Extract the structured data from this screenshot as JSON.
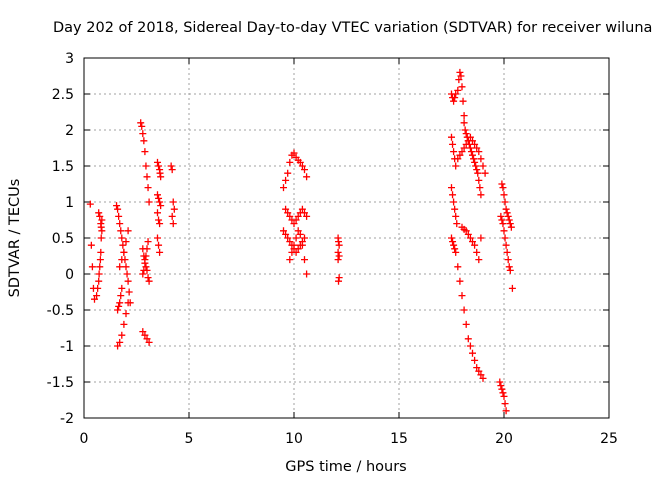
{
  "chart_data": {
    "type": "scatter",
    "title": "Day 202 of 2018, Sidereal Day-to-day VTEC variation (SDTVAR) for receiver wiluna",
    "xlabel": "GPS time / hours",
    "ylabel": "SDTVAR / TECUs",
    "xlim": [
      0,
      25
    ],
    "ylim": [
      -2,
      3
    ],
    "xticks": [
      0,
      5,
      10,
      15,
      20,
      25
    ],
    "yticks": [
      -2,
      -1.5,
      -1,
      -0.5,
      0,
      0.5,
      1,
      1.5,
      2,
      2.5,
      3
    ],
    "xtick_labels": [
      "0",
      "5",
      "10",
      "15",
      "20",
      "25"
    ],
    "ytick_labels": [
      "-2",
      "-1.5",
      "-1",
      "-0.5",
      "0",
      "0.5",
      "1",
      "1.5",
      "2",
      "2.5",
      "3"
    ],
    "grid": true,
    "marker": "+",
    "marker_color": "#ff0000",
    "series": [
      {
        "name": "SDTVAR",
        "x": [
          0.3,
          0.35,
          0.4,
          0.45,
          0.5,
          0.6,
          0.65,
          0.7,
          0.72,
          0.75,
          0.78,
          0.8,
          0.82,
          0.85,
          0.7,
          0.75,
          0.8,
          0.82,
          0.85,
          1.55,
          1.6,
          1.65,
          1.7,
          1.75,
          1.8,
          1.85,
          1.9,
          1.95,
          2.0,
          2.05,
          2.1,
          2.15,
          2.2,
          1.6,
          1.7,
          1.8,
          1.9,
          2.0,
          2.1,
          1.7,
          1.8,
          1.9,
          2.0,
          2.1,
          1.6,
          1.65,
          1.7,
          1.75,
          1.8,
          2.7,
          2.75,
          2.8,
          2.85,
          2.9,
          2.95,
          3.0,
          3.05,
          3.1,
          2.8,
          2.85,
          2.9,
          2.95,
          3.0,
          3.05,
          3.1,
          2.8,
          2.9,
          3.0,
          3.1,
          2.8,
          2.85,
          2.9,
          2.95,
          3.0,
          3.05,
          3.5,
          3.55,
          3.6,
          3.62,
          3.65,
          3.5,
          3.55,
          3.6,
          3.65,
          3.5,
          3.55,
          3.6,
          3.5,
          3.55,
          3.6,
          4.15,
          4.2,
          4.25,
          4.3,
          4.2,
          4.25,
          9.5,
          9.6,
          9.7,
          9.8,
          9.9,
          10.0,
          10.1,
          10.2,
          10.3,
          10.4,
          10.5,
          10.6,
          9.6,
          9.7,
          9.8,
          9.9,
          10.0,
          10.1,
          10.2,
          10.3,
          10.4,
          10.5,
          10.6,
          9.5,
          9.6,
          9.7,
          9.8,
          9.9,
          10.0,
          10.1,
          10.2,
          10.3,
          10.4,
          10.5,
          9.8,
          9.9,
          10.0,
          10.1,
          10.2,
          10.3,
          10.4,
          10.5,
          10.6,
          12.1,
          12.12,
          12.15,
          12.1,
          12.15,
          12.1,
          12.15,
          12.12,
          17.5,
          17.55,
          17.6,
          17.65,
          17.7,
          17.8,
          17.85,
          17.9,
          17.95,
          18.0,
          18.05,
          18.1,
          17.5,
          17.55,
          17.6,
          17.65,
          17.7,
          17.5,
          17.55,
          17.6,
          17.65,
          17.7,
          17.75,
          17.5,
          17.55,
          17.6,
          17.65,
          17.7,
          17.8,
          17.9,
          18.0,
          18.1,
          18.2,
          18.3,
          18.4,
          18.5,
          18.6,
          18.7,
          18.8,
          18.9,
          19.0,
          17.8,
          17.9,
          18.0,
          18.1,
          18.2,
          18.3,
          18.4,
          18.5,
          18.6,
          18.7,
          18.8,
          18.9,
          19.0,
          19.1,
          18.0,
          18.1,
          18.2,
          18.3,
          18.4,
          18.5,
          18.6,
          18.7,
          18.8,
          18.9,
          18.1,
          18.15,
          18.2,
          18.25,
          18.3,
          18.35,
          18.4,
          18.45,
          18.5,
          18.55,
          18.6,
          18.65,
          18.7,
          18.75,
          18.8,
          18.85,
          18.9,
          19.9,
          19.95,
          20.0,
          20.05,
          20.1,
          20.15,
          20.2,
          20.25,
          20.3,
          20.35,
          19.85,
          19.9,
          19.95,
          20.0,
          20.05,
          20.1,
          20.15,
          20.2,
          20.25,
          20.3,
          20.4,
          19.8,
          19.85,
          19.9,
          19.95,
          20.0,
          20.05,
          20.1
        ],
        "y": [
          0.97,
          0.4,
          0.1,
          -0.2,
          -0.35,
          -0.3,
          -0.2,
          -0.1,
          0.0,
          0.1,
          0.2,
          0.3,
          0.5,
          0.75,
          0.85,
          0.8,
          0.7,
          0.65,
          0.6,
          0.95,
          0.9,
          0.8,
          0.7,
          0.6,
          0.5,
          0.4,
          0.3,
          0.2,
          0.1,
          0.0,
          -0.1,
          -0.25,
          -0.4,
          -1.0,
          -0.95,
          -0.85,
          -0.7,
          -0.55,
          -0.4,
          0.1,
          0.2,
          0.3,
          0.45,
          0.6,
          -0.5,
          -0.45,
          -0.4,
          -0.3,
          -0.2,
          2.1,
          2.05,
          1.95,
          1.85,
          1.7,
          1.5,
          1.35,
          1.2,
          1.0,
          0.35,
          0.25,
          0.2,
          0.1,
          0.05,
          -0.05,
          -0.1,
          -0.8,
          -0.85,
          -0.9,
          -0.95,
          0.0,
          0.05,
          0.15,
          0.25,
          0.35,
          0.45,
          1.55,
          1.5,
          1.45,
          1.4,
          1.35,
          1.1,
          1.05,
          1.0,
          0.95,
          0.85,
          0.75,
          0.7,
          0.5,
          0.4,
          0.3,
          1.5,
          1.45,
          1.0,
          0.9,
          0.8,
          0.7,
          1.2,
          1.3,
          1.4,
          1.55,
          1.65,
          1.68,
          1.62,
          1.58,
          1.55,
          1.5,
          1.45,
          1.35,
          0.9,
          0.85,
          0.8,
          0.75,
          0.7,
          0.75,
          0.8,
          0.85,
          0.9,
          0.85,
          0.8,
          0.6,
          0.55,
          0.5,
          0.45,
          0.4,
          0.35,
          0.3,
          0.35,
          0.4,
          0.45,
          0.5,
          0.2,
          0.3,
          0.4,
          0.5,
          0.6,
          0.55,
          0.4,
          0.2,
          0.0,
          0.5,
          0.45,
          0.4,
          0.3,
          0.25,
          0.2,
          -0.05,
          -0.1,
          2.5,
          2.45,
          2.4,
          2.45,
          2.5,
          2.55,
          2.7,
          2.8,
          2.75,
          2.6,
          2.4,
          2.2,
          1.9,
          1.8,
          1.7,
          1.6,
          1.5,
          1.2,
          1.1,
          1.0,
          0.9,
          0.8,
          0.7,
          0.5,
          0.45,
          0.4,
          0.35,
          0.3,
          0.1,
          -0.1,
          -0.3,
          -0.5,
          -0.7,
          -0.9,
          -1.0,
          -1.1,
          -1.2,
          -1.3,
          -1.35,
          -1.4,
          -1.45,
          1.6,
          1.65,
          1.7,
          1.75,
          1.8,
          1.85,
          1.9,
          1.85,
          1.8,
          1.75,
          1.7,
          1.6,
          1.5,
          1.4,
          0.65,
          0.62,
          0.6,
          0.55,
          0.5,
          0.45,
          0.4,
          0.3,
          0.2,
          0.5,
          2.1,
          2.0,
          1.95,
          1.9,
          1.85,
          1.8,
          1.75,
          1.7,
          1.65,
          1.6,
          1.55,
          1.5,
          1.45,
          1.4,
          1.3,
          1.2,
          1.1,
          1.25,
          1.2,
          1.1,
          1.0,
          0.9,
          0.85,
          0.8,
          0.75,
          0.7,
          0.65,
          0.8,
          0.75,
          0.7,
          0.6,
          0.5,
          0.4,
          0.3,
          0.2,
          0.1,
          0.05,
          -0.2,
          -1.5,
          -1.55,
          -1.6,
          -1.65,
          -1.7,
          -1.8,
          -1.9
        ]
      }
    ]
  }
}
